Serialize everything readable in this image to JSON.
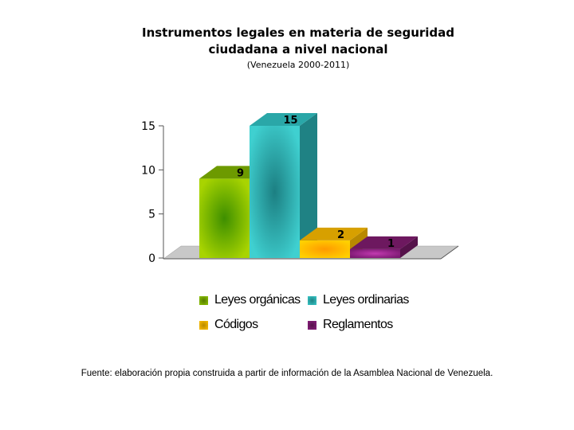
{
  "chart_data": {
    "type": "bar",
    "title": [
      "Instrumentos legales en materia de seguridad",
      "ciudadana a nivel nacional"
    ],
    "subtitle": "(Venezuela 2000-2011)",
    "categories": [
      "Leyes orgánicas",
      "Leyes ordinarias",
      "Códigos",
      "Reglamentos"
    ],
    "values": [
      9,
      15,
      2,
      1
    ],
    "colors": [
      "#8cc400",
      "#38c9c9",
      "#ffc000",
      "#8b1f7f"
    ],
    "ylim": [
      0,
      15
    ],
    "yticks": [
      "0",
      "5",
      "10",
      "15"
    ],
    "data_labels": [
      "9",
      "15",
      "2",
      "1"
    ],
    "legend_position": "bottom",
    "legend": [
      "Leyes orgánicas",
      "Leyes ordinarias",
      "Códigos",
      "Reglamentos"
    ]
  },
  "source_note": "Fuente: elaboración propia construida a partir de información de la Asamblea Nacional de Venezuela."
}
